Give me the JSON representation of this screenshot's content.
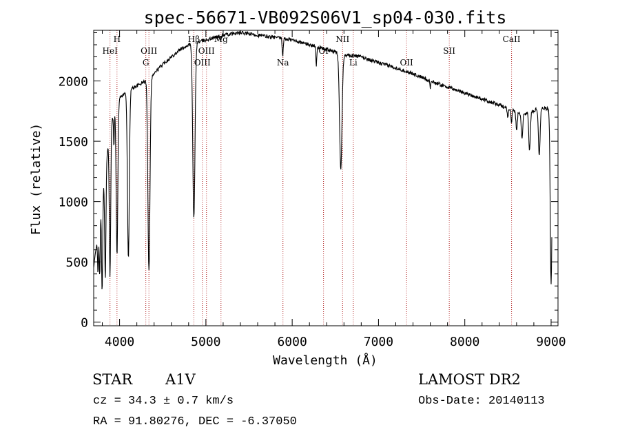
{
  "chart_data": {
    "type": "line",
    "title": "spec-56671-VB092S06V1_sp04-030.fits",
    "xlabel": "Wavelength (Å)",
    "ylabel": "Flux (relative)",
    "xlim": [
      3700,
      9080
    ],
    "ylim": [
      -30,
      2420
    ],
    "xticks": [
      4000,
      5000,
      6000,
      7000,
      8000,
      9000
    ],
    "yticks": [
      0,
      500,
      1000,
      1500,
      2000
    ],
    "grid": false,
    "continuum": {
      "x": [
        3700,
        3900,
        4000,
        4100,
        4200,
        4300,
        4400,
        4500,
        4600,
        4700,
        4800,
        4900,
        5000,
        5200,
        5400,
        5500,
        5800,
        6000,
        6200,
        6400,
        6600,
        6800,
        7000,
        7200,
        7400,
        7600,
        7800,
        8000,
        8200,
        8400,
        8600,
        8700,
        8800,
        8850,
        8900,
        9000
      ],
      "y": [
        450,
        1650,
        1860,
        1920,
        1960,
        2000,
        2060,
        2140,
        2200,
        2260,
        2300,
        2320,
        2340,
        2380,
        2400,
        2390,
        2360,
        2340,
        2300,
        2260,
        2220,
        2200,
        2150,
        2110,
        2060,
        2000,
        1950,
        1900,
        1850,
        1800,
        1750,
        1730,
        1750,
        1780,
        1780,
        1760
      ]
    },
    "absorption_features": [
      {
        "x": 3750,
        "depth": 350,
        "width": 8
      },
      {
        "x": 3770,
        "depth": 500,
        "width": 8
      },
      {
        "x": 3798,
        "depth": 800,
        "width": 9
      },
      {
        "x": 3835,
        "depth": 900,
        "width": 10
      },
      {
        "x": 3889,
        "depth": 1200,
        "width": 11
      },
      {
        "x": 3934,
        "depth": 280,
        "width": 6
      },
      {
        "x": 3970,
        "depth": 1250,
        "width": 13
      },
      {
        "x": 4102,
        "depth": 1400,
        "width": 15
      },
      {
        "x": 4340,
        "depth": 1600,
        "width": 17
      },
      {
        "x": 4861,
        "depth": 1460,
        "width": 18
      },
      {
        "x": 5170,
        "depth": 40,
        "width": 10
      },
      {
        "x": 5890,
        "depth": 150,
        "width": 8
      },
      {
        "x": 6280,
        "depth": 150,
        "width": 7
      },
      {
        "x": 6563,
        "depth": 950,
        "width": 20
      },
      {
        "x": 7600,
        "depth": 60,
        "width": 6
      },
      {
        "x": 8498,
        "depth": 90,
        "width": 8
      },
      {
        "x": 8542,
        "depth": 110,
        "width": 8
      },
      {
        "x": 8600,
        "depth": 150,
        "width": 12
      },
      {
        "x": 8662,
        "depth": 210,
        "width": 13
      },
      {
        "x": 8750,
        "depth": 310,
        "width": 13
      },
      {
        "x": 8863,
        "depth": 400,
        "width": 14
      },
      {
        "x": 9000,
        "depth": 1450,
        "width": 14
      }
    ],
    "line_markers": [
      {
        "label": "HeI",
        "x": 3889,
        "row": 2
      },
      {
        "label": "H",
        "x": 3970,
        "row": 1
      },
      {
        "label": "OIII",
        "x": 4340,
        "row": 2
      },
      {
        "label": "G",
        "x": 4304,
        "row": 3
      },
      {
        "label": "Hβ",
        "x": 4861,
        "row": 1
      },
      {
        "label": "OIII",
        "x": 4959,
        "row": 3
      },
      {
        "label": "OIII",
        "x": 5007,
        "row": 2
      },
      {
        "label": "Mg",
        "x": 5175,
        "row": 1
      },
      {
        "label": "Na",
        "x": 5893,
        "row": 3
      },
      {
        "label": "OI",
        "x": 6363,
        "row": 2
      },
      {
        "label": "NII",
        "x": 6584,
        "row": 1
      },
      {
        "label": "Li",
        "x": 6708,
        "row": 3
      },
      {
        "label": "OII",
        "x": 7325,
        "row": 3
      },
      {
        "label": "SII",
        "x": 7820,
        "row": 2
      },
      {
        "label": "CaII",
        "x": 8542,
        "row": 1
      }
    ]
  },
  "info": {
    "object_class": "STAR",
    "subclass": "A1V",
    "survey": "LAMOST DR2",
    "cz": "cz = 34.3 ± 0.7 km/s",
    "obs_date": "Obs-Date: 20140113",
    "radec": "RA =  91.80276, DEC =  -6.37050"
  },
  "colors": {
    "line": "#000000",
    "marker": "#b02020",
    "background": "#ffffff"
  }
}
